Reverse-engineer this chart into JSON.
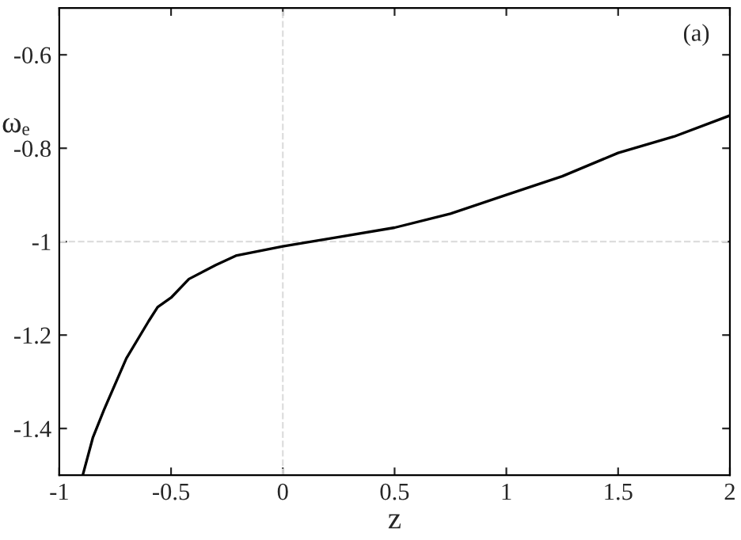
{
  "chart_data": {
    "type": "line",
    "xlabel": "z",
    "ylabel": "ωₑ",
    "annotations": [
      "(a)"
    ],
    "series": [
      {
        "color": "#000000",
        "x": [
          -0.895,
          -0.85,
          -0.8,
          -0.7,
          -0.6,
          -0.56,
          -0.5,
          -0.42,
          -0.3,
          -0.21,
          0,
          0.25,
          0.5,
          0.75,
          1.0,
          1.25,
          1.5,
          1.75,
          2.0
        ],
        "values": [
          -1.5,
          -1.42,
          -1.36,
          -1.25,
          -1.17,
          -1.14,
          -1.12,
          -1.08,
          -1.05,
          -1.03,
          -1.01,
          -0.99,
          -0.97,
          -0.94,
          -0.9,
          -0.86,
          -0.81,
          -0.775,
          -0.73
        ]
      }
    ],
    "xlim": [
      -1,
      2
    ],
    "ylim": [
      -1.5,
      -0.5
    ],
    "xticks": [
      -1,
      -0.5,
      0,
      0.5,
      1,
      1.5,
      2
    ],
    "yticks": [
      -1.4,
      -1.2,
      -1,
      -0.8,
      -0.6
    ],
    "ref_lines": [
      {
        "axis": "x",
        "value": 0,
        "color": "#dddddd",
        "line_style": "dashed"
      },
      {
        "axis": "y",
        "value": -1,
        "color": "#dddddd",
        "line_style": "dashed"
      }
    ],
    "grid": false,
    "legend": false,
    "marker": "none",
    "line_style": "solid"
  }
}
